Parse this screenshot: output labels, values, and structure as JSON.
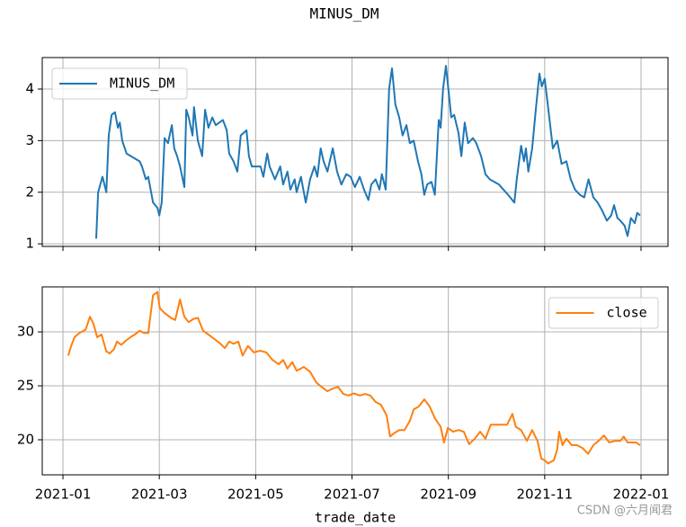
{
  "title": "MINUS_DM",
  "watermark": "CSDN @六月闻君",
  "chart_data": [
    {
      "type": "line",
      "legend": "upper left",
      "grid": true,
      "xlim": [
        0.57,
        13.56
      ],
      "ylim": [
        0.95,
        4.61
      ],
      "yticks": [
        1,
        2,
        3,
        4
      ],
      "series": [
        {
          "name": "MINUS_DM",
          "color": "#1f77b4",
          "x": [
            1.69,
            1.73,
            1.82,
            1.9,
            1.95,
            2.01,
            2.08,
            2.14,
            2.18,
            2.23,
            2.32,
            2.59,
            2.64,
            2.72,
            2.77,
            2.87,
            2.96,
            3.0,
            3.05,
            3.11,
            3.18,
            3.26,
            3.31,
            3.37,
            3.43,
            3.52,
            3.56,
            3.61,
            3.69,
            3.72,
            3.8,
            3.89,
            3.95,
            4.02,
            4.1,
            4.17,
            4.32,
            4.4,
            4.45,
            4.54,
            4.62,
            4.69,
            4.81,
            4.86,
            4.92,
            5.1,
            5.16,
            5.24,
            5.29,
            5.4,
            5.51,
            5.57,
            5.66,
            5.72,
            5.81,
            5.85,
            5.94,
            6.04,
            6.13,
            6.22,
            6.28,
            6.35,
            6.41,
            6.49,
            6.6,
            6.69,
            6.78,
            6.88,
            6.97,
            7.06,
            7.16,
            7.25,
            7.34,
            7.4,
            7.49,
            7.57,
            7.62,
            7.7,
            7.77,
            7.83,
            7.9,
            7.98,
            8.05,
            8.13,
            8.2,
            8.28,
            8.37,
            8.44,
            8.5,
            8.56,
            8.65,
            8.72,
            8.8,
            8.84,
            8.89,
            8.95,
            9.0,
            9.06,
            9.12,
            9.21,
            9.27,
            9.34,
            9.41,
            9.51,
            9.58,
            9.68,
            9.77,
            9.86,
            10.05,
            10.24,
            10.37,
            10.42,
            10.51,
            10.57,
            10.61,
            10.66,
            10.74,
            10.81,
            10.89,
            10.94,
            11.0,
            11.07,
            11.17,
            11.26,
            11.35,
            11.45,
            11.54,
            11.63,
            11.73,
            11.82,
            11.91,
            12.01,
            12.1,
            12.19,
            12.29,
            12.38,
            12.44,
            12.51,
            12.57,
            12.66,
            12.72,
            12.79,
            12.87,
            12.92,
            12.98
          ],
          "values": [
            1.1,
            2.0,
            2.3,
            2.0,
            3.1,
            3.5,
            3.55,
            3.25,
            3.35,
            3.0,
            2.75,
            2.6,
            2.5,
            2.25,
            2.3,
            1.8,
            1.7,
            1.55,
            1.8,
            3.05,
            2.95,
            3.3,
            2.85,
            2.7,
            2.5,
            2.1,
            3.6,
            3.45,
            3.1,
            3.65,
            3.0,
            2.7,
            3.6,
            3.25,
            3.45,
            3.3,
            3.4,
            3.2,
            2.75,
            2.6,
            2.4,
            3.1,
            3.2,
            2.7,
            2.5,
            2.5,
            2.3,
            2.75,
            2.5,
            2.25,
            2.5,
            2.15,
            2.4,
            2.05,
            2.25,
            2.0,
            2.3,
            1.8,
            2.25,
            2.5,
            2.3,
            2.85,
            2.6,
            2.4,
            2.85,
            2.4,
            2.15,
            2.35,
            2.3,
            2.1,
            2.3,
            2.05,
            1.85,
            2.15,
            2.25,
            2.05,
            2.35,
            2.05,
            4.0,
            4.4,
            3.7,
            3.45,
            3.1,
            3.3,
            2.95,
            3.0,
            2.6,
            2.35,
            1.95,
            2.15,
            2.2,
            1.95,
            3.4,
            3.25,
            4.0,
            4.45,
            4.0,
            3.45,
            3.5,
            3.15,
            2.7,
            3.35,
            2.95,
            3.05,
            2.95,
            2.7,
            2.35,
            2.25,
            2.15,
            1.95,
            1.8,
            2.25,
            2.9,
            2.6,
            2.85,
            2.4,
            2.85,
            3.55,
            4.3,
            4.05,
            4.2,
            3.65,
            2.85,
            3.0,
            2.55,
            2.6,
            2.25,
            2.05,
            1.95,
            1.9,
            2.25,
            1.9,
            1.8,
            1.65,
            1.45,
            1.55,
            1.75,
            1.5,
            1.45,
            1.35,
            1.15,
            1.5,
            1.4,
            1.6,
            1.55
          ]
        }
      ]
    },
    {
      "type": "line",
      "legend": "upper right",
      "grid": true,
      "xlabel": "trade_date",
      "xlim": [
        0.57,
        13.56
      ],
      "ylim": [
        16.75,
        34.17
      ],
      "yticks": [
        20,
        25,
        30
      ],
      "xticks": [
        {
          "value": 1,
          "label": "2021-01"
        },
        {
          "value": 3,
          "label": "2021-03"
        },
        {
          "value": 5,
          "label": "2021-05"
        },
        {
          "value": 7,
          "label": "2021-07"
        },
        {
          "value": 9,
          "label": "2021-09"
        },
        {
          "value": 11,
          "label": "2021-11"
        },
        {
          "value": 13,
          "label": "2022-01"
        }
      ],
      "series": [
        {
          "name": "close",
          "color": "#ff7f0e",
          "x": [
            1.11,
            1.17,
            1.24,
            1.34,
            1.47,
            1.56,
            1.63,
            1.71,
            1.8,
            1.9,
            1.97,
            2.06,
            2.12,
            2.21,
            2.31,
            2.4,
            2.49,
            2.59,
            2.68,
            2.77,
            2.87,
            2.96,
            3.01,
            3.11,
            3.24,
            3.33,
            3.43,
            3.52,
            3.61,
            3.71,
            3.8,
            3.91,
            4.02,
            4.17,
            4.27,
            4.36,
            4.45,
            4.54,
            4.64,
            4.73,
            4.84,
            4.96,
            5.1,
            5.22,
            5.35,
            5.48,
            5.57,
            5.66,
            5.76,
            5.85,
            6.0,
            6.13,
            6.26,
            6.37,
            6.49,
            6.6,
            6.71,
            6.82,
            6.93,
            7.04,
            7.16,
            7.27,
            7.38,
            7.49,
            7.6,
            7.72,
            7.79,
            7.87,
            7.98,
            8.09,
            8.2,
            8.28,
            8.39,
            8.5,
            8.61,
            8.72,
            8.84,
            8.91,
            8.99,
            9.1,
            9.21,
            9.32,
            9.43,
            9.55,
            9.66,
            9.77,
            9.88,
            9.99,
            10.1,
            10.22,
            10.33,
            10.4,
            10.51,
            10.63,
            10.74,
            10.85,
            10.93,
            11.0,
            11.07,
            11.19,
            11.26,
            11.3,
            11.37,
            11.45,
            11.56,
            11.67,
            11.78,
            11.9,
            12.01,
            12.12,
            12.23,
            12.34,
            12.46,
            12.57,
            12.64,
            12.72,
            12.83,
            12.9,
            12.98
          ],
          "values": [
            27.8,
            28.7,
            29.5,
            29.9,
            30.2,
            31.4,
            30.8,
            29.5,
            29.75,
            28.2,
            28.0,
            28.4,
            29.1,
            28.8,
            29.2,
            29.5,
            29.75,
            30.1,
            29.9,
            29.9,
            33.4,
            33.7,
            32.2,
            31.75,
            31.3,
            31.1,
            33.0,
            31.4,
            30.9,
            31.2,
            31.3,
            30.1,
            29.75,
            29.25,
            28.9,
            28.5,
            29.1,
            28.9,
            29.1,
            27.8,
            28.7,
            28.1,
            28.25,
            28.1,
            27.4,
            27.0,
            27.4,
            26.6,
            27.2,
            26.4,
            26.75,
            26.3,
            25.3,
            24.9,
            24.5,
            24.75,
            24.9,
            24.25,
            24.1,
            24.3,
            24.1,
            24.25,
            24.1,
            23.5,
            23.25,
            22.25,
            20.3,
            20.6,
            20.9,
            20.9,
            21.75,
            22.8,
            23.1,
            23.75,
            23.1,
            22.0,
            21.2,
            19.75,
            21.1,
            20.75,
            20.9,
            20.75,
            19.6,
            20.1,
            20.75,
            20.1,
            21.4,
            21.4,
            21.4,
            21.4,
            22.4,
            21.2,
            20.9,
            19.9,
            20.9,
            19.9,
            18.25,
            18.1,
            17.8,
            18.1,
            19.1,
            20.75,
            19.5,
            20.1,
            19.5,
            19.5,
            19.25,
            18.7,
            19.5,
            19.9,
            20.4,
            19.75,
            19.9,
            19.9,
            20.3,
            19.75,
            19.75,
            19.75,
            19.5
          ]
        }
      ]
    }
  ]
}
